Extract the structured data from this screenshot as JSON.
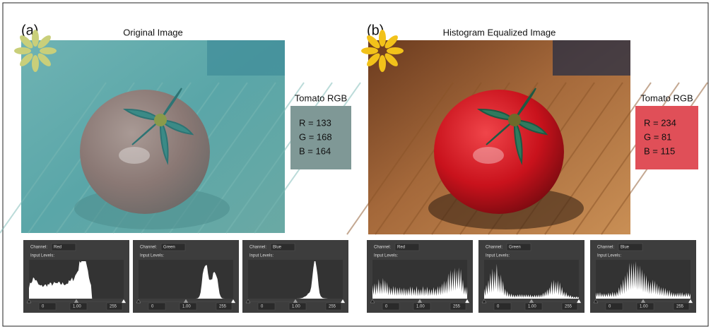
{
  "panels": [
    {
      "label": "(a)",
      "title": "Original Image",
      "rgb_title": "Tomato RGB",
      "rgb": [
        "R = 133",
        "G = 168",
        "B = 164"
      ],
      "histograms": [
        {
          "channel_label": "Channel:",
          "channel": "Red",
          "input_levels": "Input Levels:",
          "fields": [
            "0",
            "1.00",
            "255"
          ]
        },
        {
          "channel_label": "Channel:",
          "channel": "Green",
          "input_levels": "Input Levels:",
          "fields": [
            "0",
            "1.00",
            "255"
          ]
        },
        {
          "channel_label": "Channel:",
          "channel": "Blue",
          "input_levels": "Input Levels:",
          "fields": [
            "0",
            "1.00",
            "255"
          ]
        }
      ]
    },
    {
      "label": "(b)",
      "title": "Histogram Equalized Image",
      "rgb_title": "Tomato RGB",
      "rgb": [
        "R = 234",
        "G = 81",
        "B = 115"
      ],
      "histograms": [
        {
          "channel_label": "Channel:",
          "channel": "Red",
          "input_levels": "Input Levels:",
          "fields": [
            "0",
            "1.00",
            "255"
          ]
        },
        {
          "channel_label": "Channel:",
          "channel": "Green",
          "input_levels": "Input Levels:",
          "fields": [
            "0",
            "1.00",
            "255"
          ]
        },
        {
          "channel_label": "Channel:",
          "channel": "Blue",
          "input_levels": "Input Levels:",
          "fields": [
            "0",
            "1.00",
            "255"
          ]
        }
      ]
    }
  ]
}
